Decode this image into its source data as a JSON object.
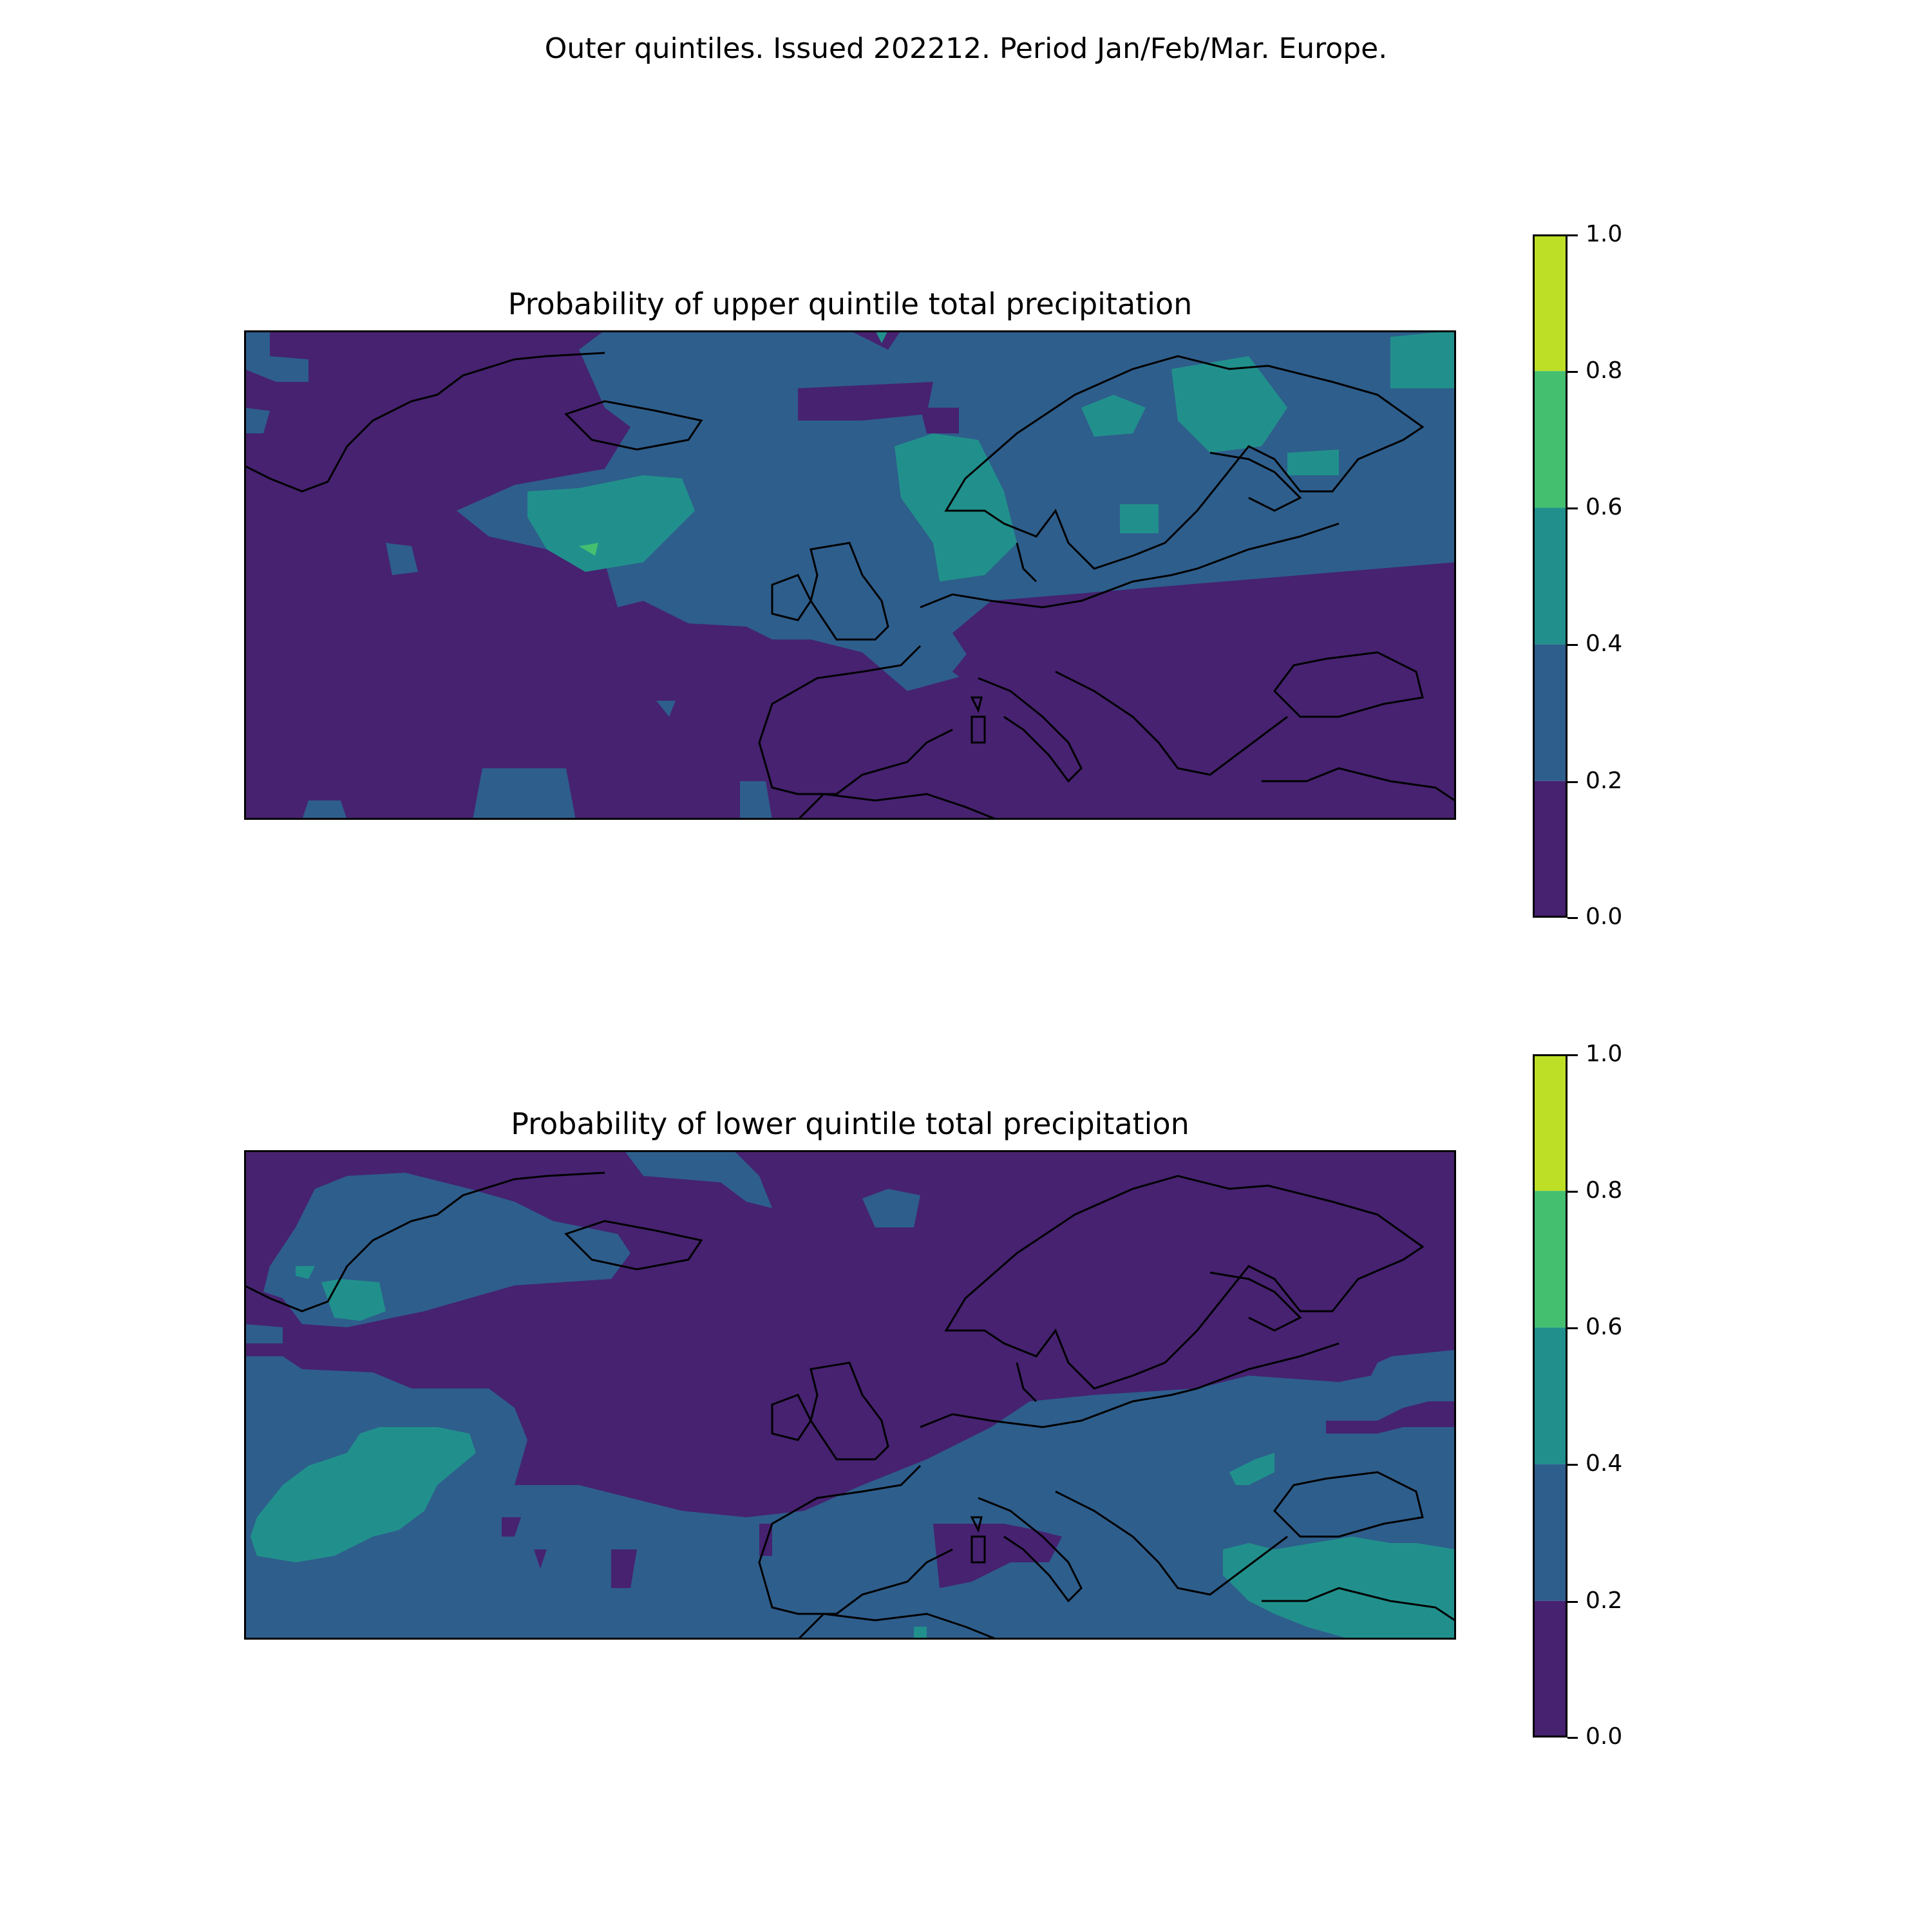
{
  "figure": {
    "suptitle": "Outer quintiles. Issued 202212. Period Jan/Feb/Mar. Europe."
  },
  "colorbar": {
    "levels": [
      "0.0",
      "0.2",
      "0.4",
      "0.6",
      "0.8",
      "1.0"
    ],
    "colors": [
      "#462270",
      "#2e5e8c",
      "#21908c",
      "#44bf70",
      "#bddf26"
    ]
  },
  "panels": [
    {
      "id": "upper",
      "title": "Probability of upper quintile total precipitation",
      "background_class": "#462270"
    },
    {
      "id": "lower",
      "title": "Probability of lower quintile total precipitation",
      "background_class": "#462270"
    }
  ],
  "map_style": {
    "coastline_color": "#000000",
    "frame_color": "#000000"
  }
}
